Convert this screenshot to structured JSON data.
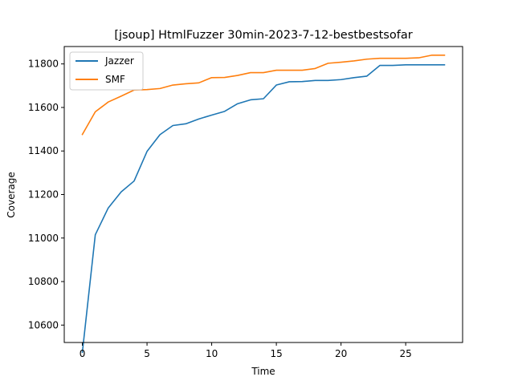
{
  "chart_data": {
    "type": "line",
    "title": "[jsoup] HtmlFuzzer 30min-2023-7-12-bestbestsofar",
    "xlabel": "Time",
    "ylabel": "Coverage",
    "xlim": [
      -1.4,
      29.4
    ],
    "ylim": [
      10520,
      11880
    ],
    "xticks": [
      0,
      5,
      10,
      15,
      20,
      25
    ],
    "yticks": [
      10600,
      10800,
      11000,
      11200,
      11400,
      11600,
      11800
    ],
    "grid": false,
    "legend_position": "upper-left",
    "x": [
      0,
      1,
      2,
      3,
      4,
      5,
      6,
      7,
      8,
      9,
      10,
      11,
      12,
      13,
      14,
      15,
      16,
      17,
      18,
      19,
      20,
      21,
      22,
      23,
      24,
      25,
      26,
      27,
      28
    ],
    "series": [
      {
        "name": "Jazzer",
        "color": "#1f77b4",
        "values": [
          10475,
          11015,
          11138,
          11212,
          11262,
          11398,
          11475,
          11517,
          11525,
          11547,
          11565,
          11582,
          11617,
          11635,
          11640,
          11703,
          11718,
          11719,
          11724,
          11724,
          11728,
          11737,
          11744,
          11793,
          11793,
          11796,
          11796,
          11796,
          11796
        ]
      },
      {
        "name": "SMF",
        "color": "#ff7f0e",
        "values": [
          11476,
          11580,
          11625,
          11652,
          11680,
          11682,
          11687,
          11703,
          11709,
          11713,
          11737,
          11738,
          11747,
          11760,
          11760,
          11771,
          11771,
          11771,
          11779,
          11803,
          11808,
          11814,
          11822,
          11826,
          11826,
          11826,
          11828,
          11840,
          11840
        ]
      }
    ]
  }
}
